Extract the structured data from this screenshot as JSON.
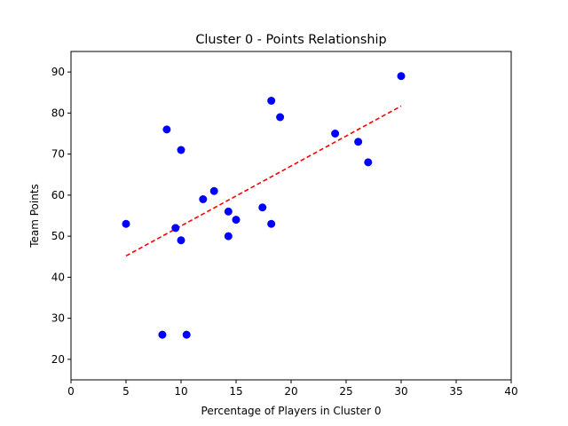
{
  "chart_data": {
    "type": "scatter",
    "title": "Cluster 0 - Points Relationship",
    "xlabel": "Percentage of Players in Cluster 0",
    "ylabel": "Team Points",
    "xlim": [
      0,
      40
    ],
    "ylim": [
      15,
      95
    ],
    "xticks": [
      0,
      5,
      10,
      15,
      20,
      25,
      30,
      35,
      40
    ],
    "yticks": [
      20,
      30,
      40,
      50,
      60,
      70,
      80,
      90
    ],
    "grid": false,
    "points": [
      {
        "x": 5.0,
        "y": 53
      },
      {
        "x": 8.3,
        "y": 26
      },
      {
        "x": 8.7,
        "y": 76
      },
      {
        "x": 9.5,
        "y": 52
      },
      {
        "x": 10.0,
        "y": 71
      },
      {
        "x": 10.0,
        "y": 49
      },
      {
        "x": 10.5,
        "y": 26
      },
      {
        "x": 12.0,
        "y": 59
      },
      {
        "x": 13.0,
        "y": 61
      },
      {
        "x": 14.3,
        "y": 56
      },
      {
        "x": 14.3,
        "y": 50
      },
      {
        "x": 15.0,
        "y": 54
      },
      {
        "x": 17.4,
        "y": 57
      },
      {
        "x": 18.2,
        "y": 83
      },
      {
        "x": 18.2,
        "y": 53
      },
      {
        "x": 19.0,
        "y": 79
      },
      {
        "x": 24.0,
        "y": 75
      },
      {
        "x": 26.1,
        "y": 73
      },
      {
        "x": 27.0,
        "y": 68
      },
      {
        "x": 30.0,
        "y": 89
      }
    ],
    "point_color": "#0000ff",
    "trendline": {
      "x": [
        5.0,
        30.0
      ],
      "y": [
        45.2,
        81.7
      ],
      "color": "#ff0000",
      "style": "dashed"
    }
  }
}
